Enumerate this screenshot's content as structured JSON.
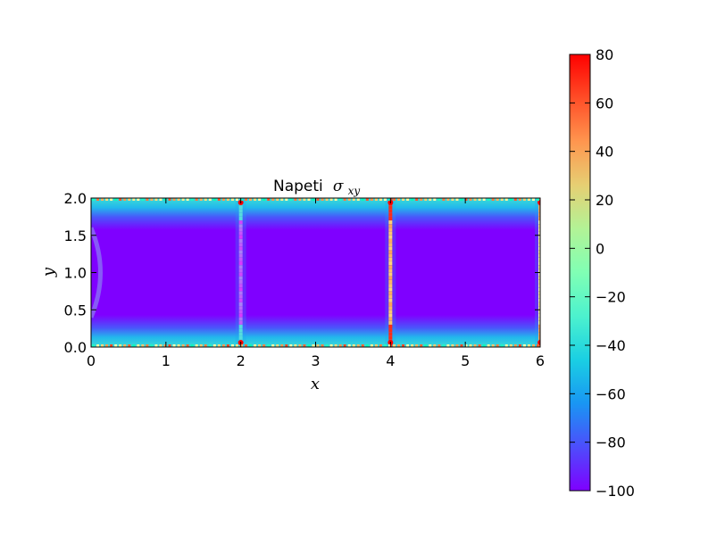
{
  "chart_data": {
    "type": "heatmap",
    "title_prefix": "Napeti",
    "title_symbol": "σ",
    "title_subscript": "xy",
    "xlabel": "x",
    "ylabel": "y",
    "xlim": [
      0,
      6
    ],
    "ylim": [
      0,
      2
    ],
    "xticks": [
      "0",
      "1",
      "2",
      "3",
      "4",
      "5",
      "6"
    ],
    "yticks": [
      "0.0",
      "0.5",
      "1.0",
      "1.5",
      "2.0"
    ],
    "colorbar": {
      "min": -100,
      "max": 80,
      "ticks": [
        "80",
        "60",
        "40",
        "20",
        "0",
        "−20",
        "−40",
        "−60",
        "−80",
        "−100"
      ],
      "colormap": "rainbow"
    },
    "field": {
      "background_value": -100,
      "features": [
        {
          "kind": "horizontal-band",
          "y_from": 0.0,
          "y_to": 0.4,
          "value_at_edge": -40,
          "value_at_inner": -100
        },
        {
          "kind": "horizontal-band",
          "y_from": 1.6,
          "y_to": 2.0,
          "value_at_edge": -40,
          "value_at_inner": -100
        },
        {
          "kind": "vertical-line",
          "x": 2.0,
          "value": -70
        },
        {
          "kind": "vertical-line",
          "x": 4.0,
          "value": 40
        },
        {
          "kind": "vertical-line",
          "x": 6.0,
          "value": 10
        },
        {
          "kind": "left-arc",
          "x_to": 0.25,
          "value": -60
        }
      ]
    }
  }
}
